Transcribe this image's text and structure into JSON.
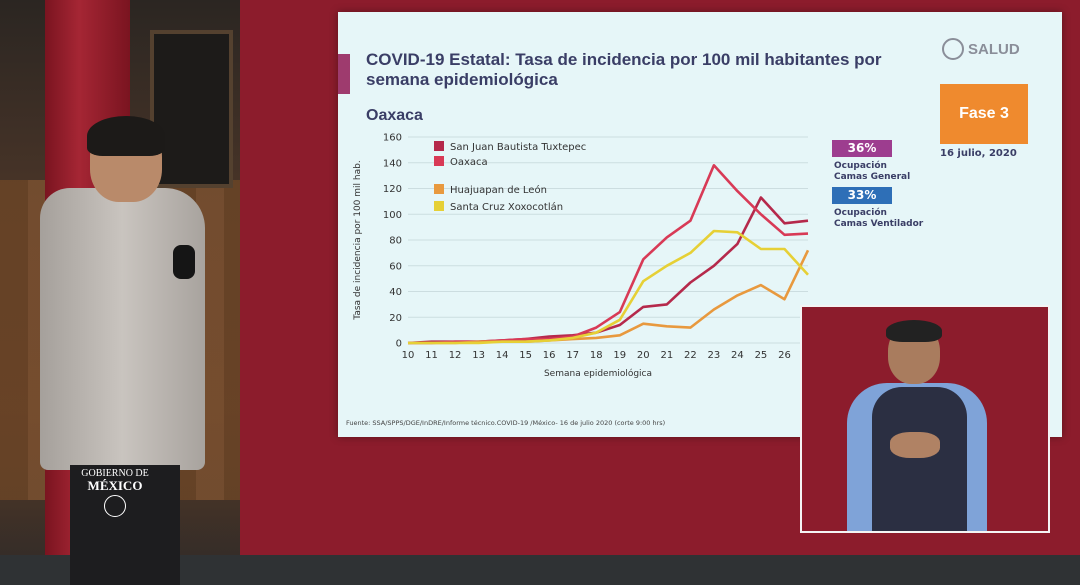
{
  "slide": {
    "title": "COVID-19 Estatal: Tasa de incidencia por 100 mil habitantes por semana epidemiológica",
    "state": "Oaxaca",
    "logo_text": "SALUD",
    "phase": "Fase 3",
    "date": "16 julio, 2020",
    "badges": [
      {
        "value": "36%",
        "label_line1": "Ocupación",
        "label_line2": "Camas General",
        "color": "#9d3d8f"
      },
      {
        "value": "33%",
        "label_line1": "Ocupación",
        "label_line2": "Camas Ventilador",
        "color": "#2e6fb7"
      }
    ],
    "source": "Fuente: SSA/SPPS/DGE/InDRE/Informe técnico.COVID-19 /México- 16 de julio 2020 (corte 9:00 hrs)"
  },
  "branding": {
    "gov_line1": "GOBIERNO DE",
    "gov_line2": "MÉXICO"
  },
  "chart_data": {
    "type": "line",
    "title": "",
    "xlabel": "Semana epidemiológica",
    "ylabel": "Tasa de incidencia por 100 mil hab.",
    "x": [
      10,
      11,
      12,
      13,
      14,
      15,
      16,
      17,
      18,
      19,
      20,
      21,
      22,
      23,
      24,
      25,
      26,
      27
    ],
    "ylim": [
      0,
      160
    ],
    "yticks": [
      0,
      20,
      40,
      60,
      80,
      100,
      120,
      140,
      160
    ],
    "xticks_labels": [
      "10",
      "11",
      "12",
      "13",
      "14",
      "15",
      "16",
      "17",
      "18",
      "19",
      "20",
      "21",
      "22",
      "23",
      "24",
      "25",
      "26"
    ],
    "grid": true,
    "legend_position": "top-left",
    "series": [
      {
        "name": "San Juan Bautista Tuxtepec",
        "color": "#b5294b",
        "values": [
          0,
          1,
          1,
          1,
          2,
          3,
          5,
          6,
          8,
          14,
          28,
          30,
          47,
          60,
          77,
          113,
          93,
          95
        ]
      },
      {
        "name": "Oaxaca",
        "color": "#d83a56",
        "values": [
          0,
          0,
          1,
          1,
          2,
          3,
          3,
          5,
          12,
          24,
          65,
          82,
          95,
          138,
          118,
          100,
          84,
          85
        ]
      },
      {
        "name": "Huajuapan de León",
        "color": "#e8993e",
        "values": [
          0,
          0,
          0,
          1,
          1,
          1,
          2,
          3,
          4,
          6,
          15,
          13,
          12,
          26,
          37,
          45,
          34,
          72
        ]
      },
      {
        "name": "Santa Cruz Xoxocotlán",
        "color": "#e6d036",
        "values": [
          0,
          0,
          0,
          0,
          1,
          1,
          2,
          4,
          8,
          18,
          48,
          60,
          70,
          87,
          86,
          73,
          73,
          53
        ]
      }
    ]
  }
}
